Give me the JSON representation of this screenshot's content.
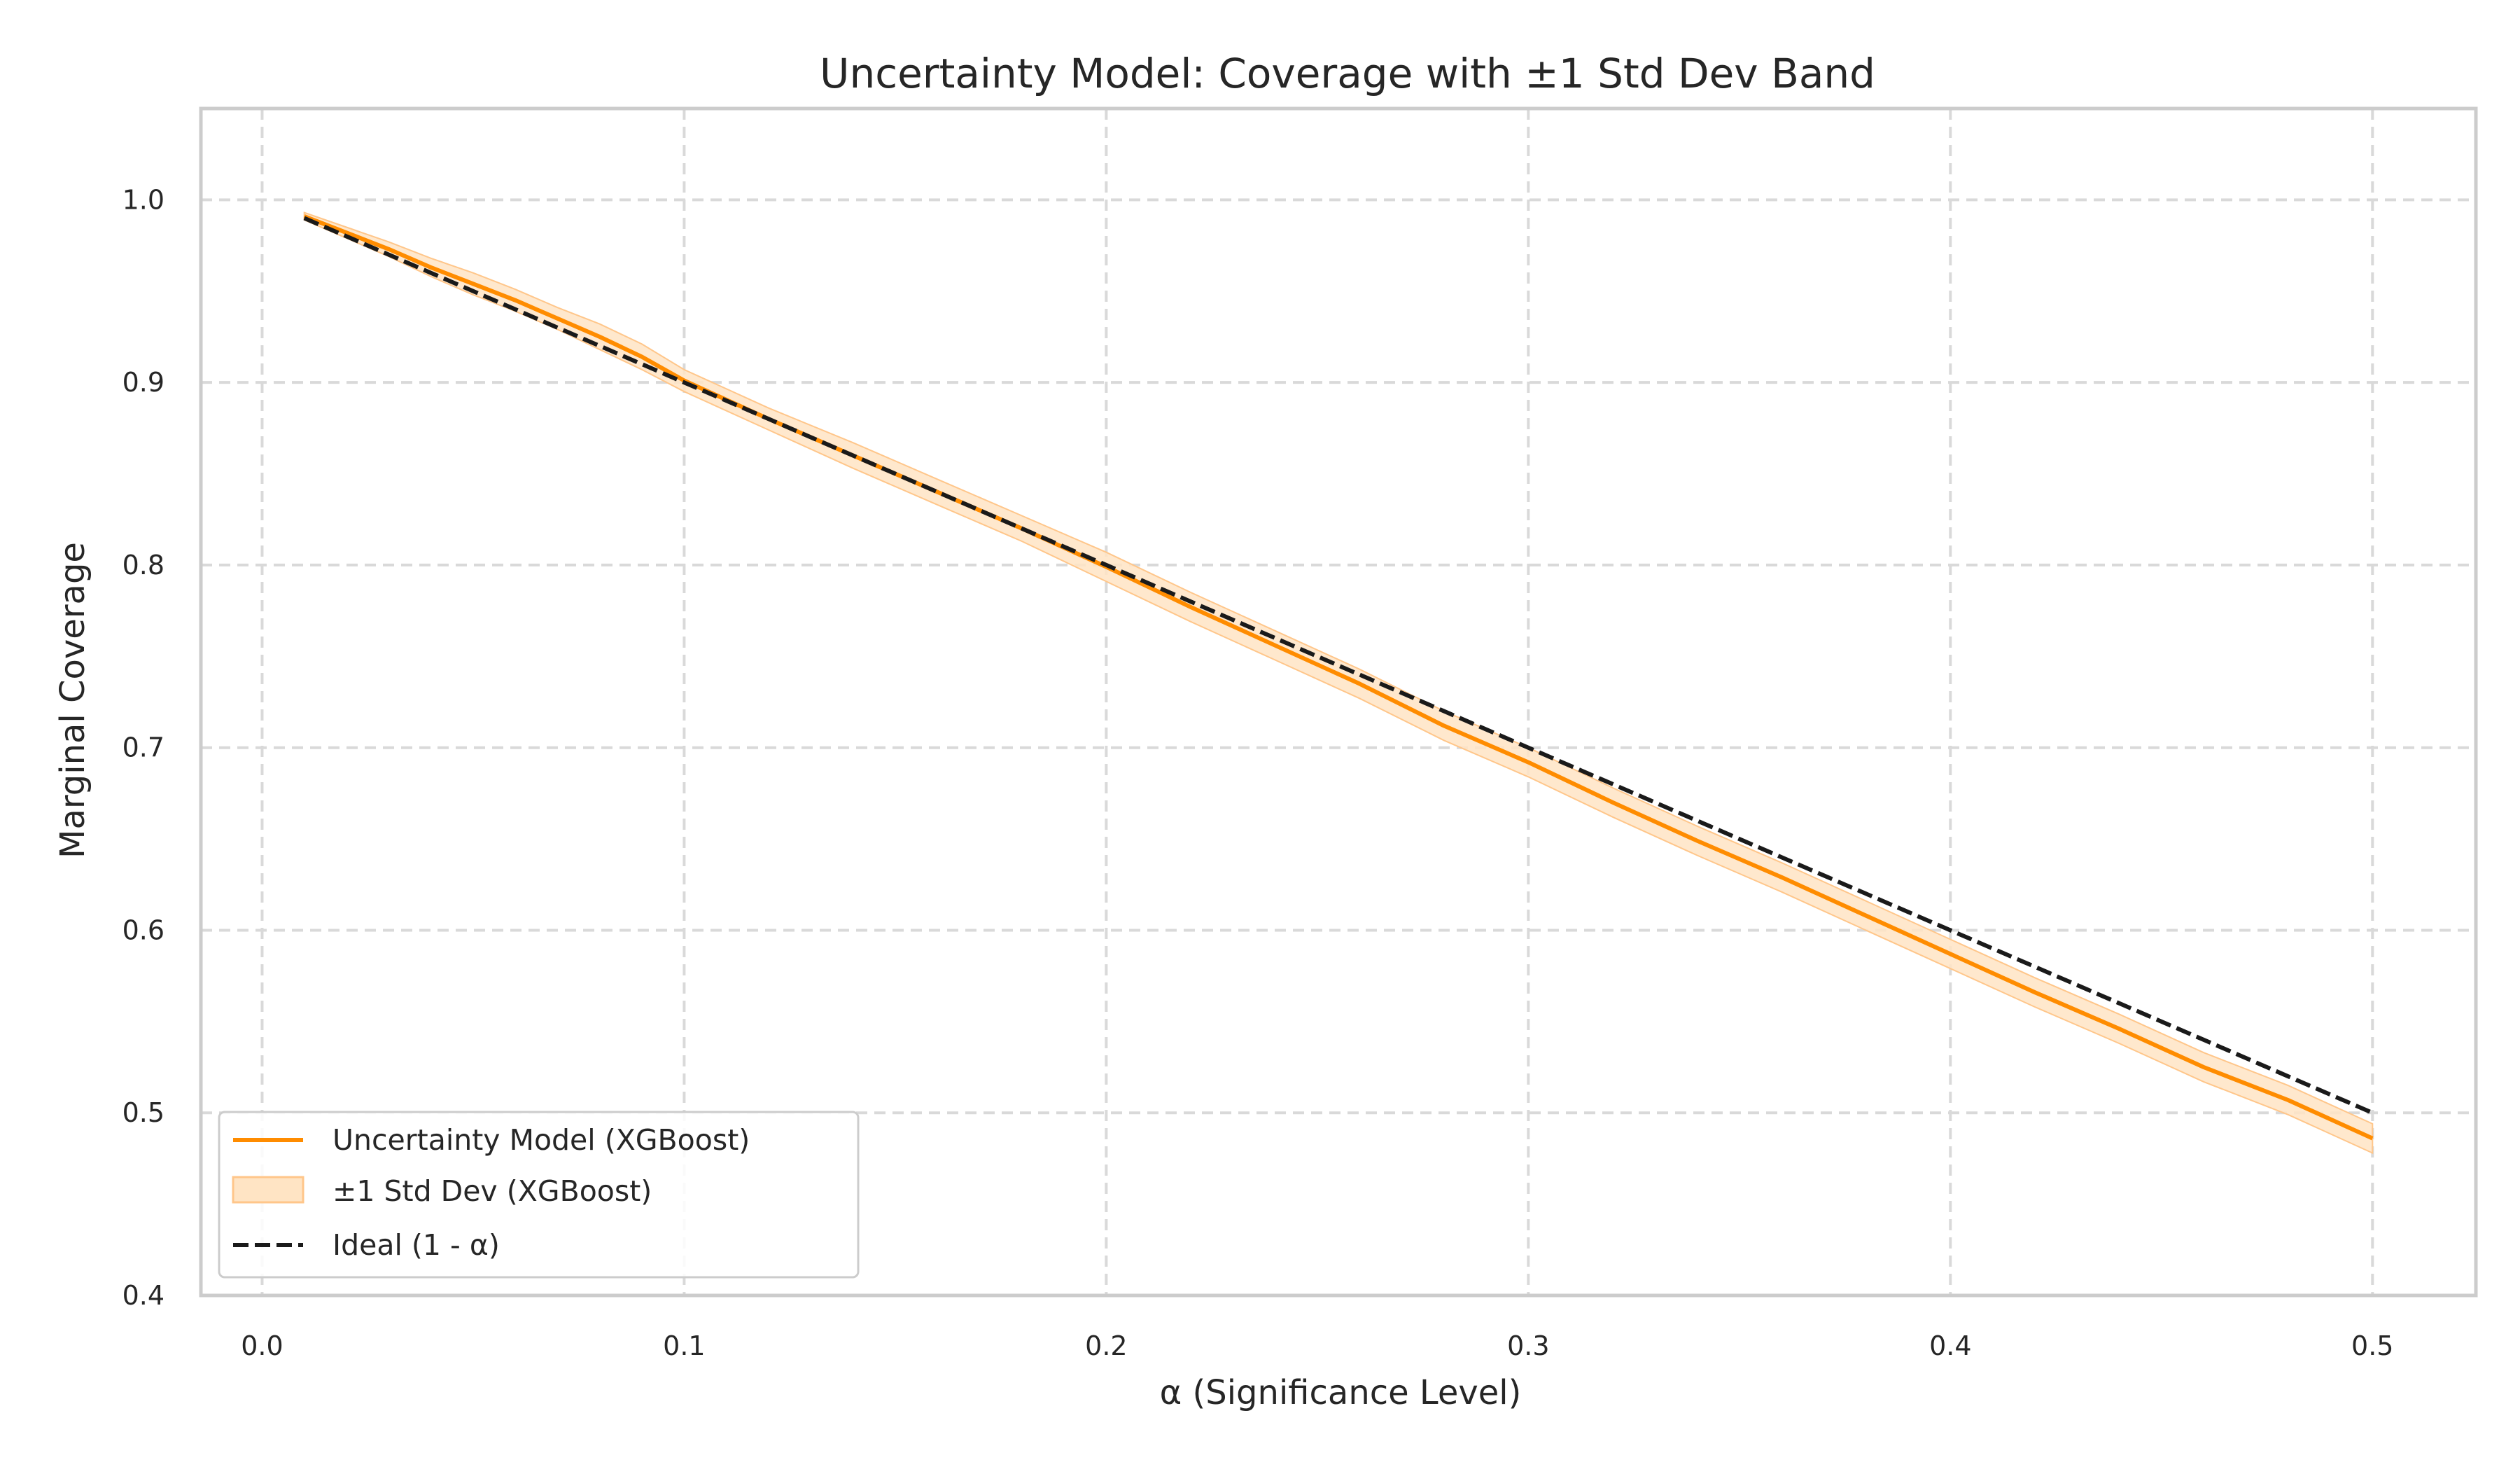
{
  "chart_data": {
    "type": "line",
    "title": "Uncertainty Model: Coverage with ±1 Std Dev Band",
    "xlabel": "α (Significance Level)",
    "ylabel": "Marginal Coverage",
    "xlim": [
      -0.0145,
      0.5245
    ],
    "ylim": [
      0.4,
      1.05
    ],
    "xticks": [
      0.0,
      0.1,
      0.2,
      0.3,
      0.4,
      0.5
    ],
    "xtick_labels": [
      "0.0",
      "0.1",
      "0.2",
      "0.3",
      "0.4",
      "0.5"
    ],
    "yticks": [
      0.4,
      0.5,
      0.6,
      0.7,
      0.8,
      0.9,
      1.0
    ],
    "ytick_labels": [
      "0.4",
      "0.5",
      "0.6",
      "0.7",
      "0.8",
      "0.9",
      "1.0"
    ],
    "grid": true,
    "legend_position": "lower-left",
    "colors": {
      "model_line": "#ff8c00",
      "band_fill": "#ffe4c4",
      "band_edge": "#ffc68a",
      "ideal_line": "#1a1a1a",
      "grid": "#d9d9d9",
      "frame": "#cccccc"
    },
    "x": [
      0.01,
      0.02,
      0.03,
      0.04,
      0.05,
      0.06,
      0.07,
      0.08,
      0.09,
      0.1,
      0.12,
      0.14,
      0.16,
      0.18,
      0.2,
      0.22,
      0.24,
      0.26,
      0.28,
      0.3,
      0.32,
      0.34,
      0.36,
      0.38,
      0.4,
      0.42,
      0.44,
      0.46,
      0.48,
      0.5
    ],
    "series": [
      {
        "name": "Uncertainty Model (XGBoost)",
        "style": "solid",
        "values": [
          0.991,
          0.982,
          0.973,
          0.963,
          0.954,
          0.945,
          0.935,
          0.925,
          0.914,
          0.901,
          0.88,
          0.86,
          0.84,
          0.82,
          0.799,
          0.777,
          0.756,
          0.735,
          0.712,
          0.692,
          0.67,
          0.649,
          0.629,
          0.608,
          0.587,
          0.566,
          0.546,
          0.525,
          0.507,
          0.486
        ]
      },
      {
        "name": "±1 Std Dev (XGBoost)",
        "style": "band",
        "lower": [
          0.989,
          0.979,
          0.969,
          0.958,
          0.948,
          0.939,
          0.929,
          0.918,
          0.907,
          0.895,
          0.874,
          0.853,
          0.833,
          0.813,
          0.791,
          0.769,
          0.748,
          0.727,
          0.704,
          0.684,
          0.662,
          0.641,
          0.621,
          0.6,
          0.579,
          0.558,
          0.538,
          0.517,
          0.499,
          0.478
        ],
        "upper": [
          0.993,
          0.985,
          0.977,
          0.968,
          0.96,
          0.951,
          0.941,
          0.932,
          0.921,
          0.907,
          0.886,
          0.867,
          0.847,
          0.827,
          0.807,
          0.785,
          0.764,
          0.743,
          0.72,
          0.7,
          0.678,
          0.657,
          0.637,
          0.616,
          0.595,
          0.574,
          0.554,
          0.533,
          0.515,
          0.494
        ]
      },
      {
        "name": "Ideal (1 - α)",
        "style": "dashed",
        "values": [
          0.99,
          0.98,
          0.97,
          0.96,
          0.95,
          0.94,
          0.93,
          0.92,
          0.91,
          0.9,
          0.88,
          0.86,
          0.84,
          0.82,
          0.8,
          0.78,
          0.76,
          0.74,
          0.72,
          0.7,
          0.68,
          0.66,
          0.64,
          0.62,
          0.6,
          0.58,
          0.56,
          0.54,
          0.52,
          0.5
        ]
      }
    ]
  }
}
